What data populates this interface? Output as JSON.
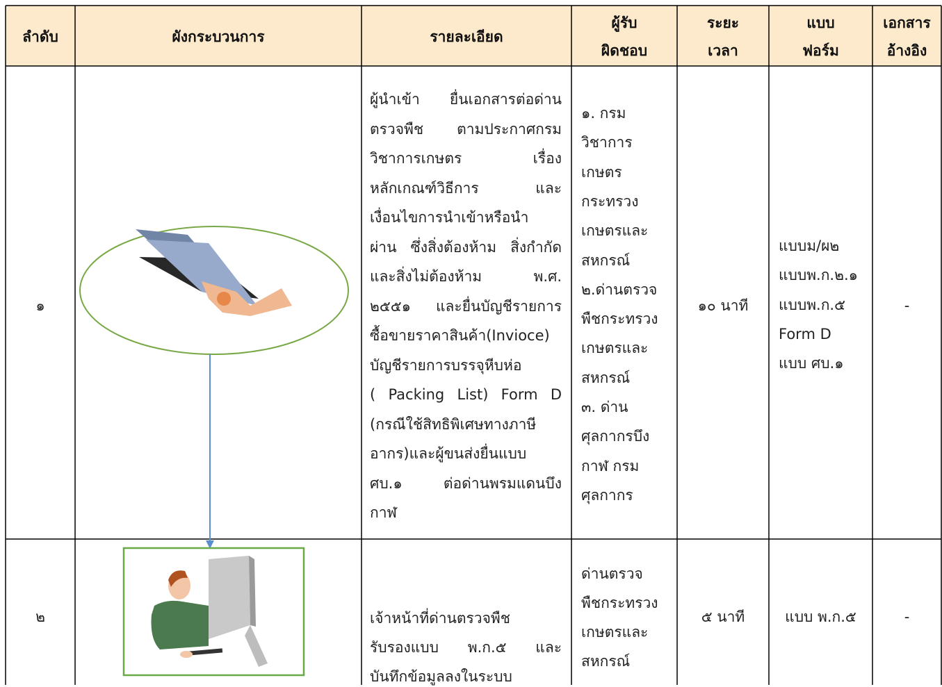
{
  "table": {
    "header": [
      [
        "ลำดับ"
      ],
      [
        "ผังกระบวนการ"
      ],
      [
        "รายละเอียด"
      ],
      [
        "ผู้รับ",
        "ผิดชอบ"
      ],
      [
        "ระยะ",
        "เวลา"
      ],
      [
        "แบบ",
        "ฟอร์ม"
      ],
      [
        "เอกสาร",
        "อ้างอิง"
      ]
    ],
    "rows": [
      {
        "number": "๑",
        "detail": [
          "ผู้นำเข้า ยื่นเอกสารต่อด่าน",
          "ตรวจพืช ตามประกาศกรม",
          "วิชาการเกษตร เรื่อง",
          "หลักเกณฑ์วิธีการ และ",
          "เงื่อนไขการนำเข้าหรือนำ",
          "ผ่าน ซึ่งสิ่งต้องห้าม สิ่งกำกัด",
          "และสิ่งไม่ต้องห้าม พ.ศ.",
          "๒๕๕๑ และยื่นบัญชีรายการ",
          "ซื้อขายราคาสินค้า(Invioce)",
          "บัญชีรายการบรรจุหีบห่อ",
          "( Packing List) Form D",
          "(กรณีใช้สิทธิพิเศษทางภาษี",
          "อากร)และผู้ขนส่งยื่นแบบ",
          "ศบ.๑ ต่อด่านพรมแดนบึง",
          "กาฬ"
        ],
        "responsible": [
          "๑. กรม",
          "วิชาการ",
          "เกษตร",
          "กระทรวง",
          "เกษตรและ",
          "สหกรณ์",
          "๒.ด่านตรวจ",
          "พืชกระทรวง",
          "เกษตรและ",
          "สหกรณ์",
          "๓. ด่าน",
          "ศุลกากรบึง",
          "กาฬ กรม",
          "ศุลกากร"
        ],
        "time": "๑๐ นาที",
        "form": [
          "แบบม/ผ๒",
          "แบบพ.ก.๒.๑",
          "แบบพ.ก.๕",
          "Form D",
          "แบบ ศบ.๑"
        ],
        "reference": "-"
      },
      {
        "number": "๒",
        "detail": [
          "เจ้าหน้าที่ด่านตรวจพืช",
          "รับรองแบบ พ.ก.๕ และ",
          "บันทึกข้อมูลลงในระบบ"
        ],
        "responsible": [
          "ด่านตรวจ",
          "พืชกระทรวง",
          "เกษตรและ",
          "สหกรณ์"
        ],
        "time": "๕ นาที",
        "form": [
          "แบบ พ.ก.๕"
        ],
        "reference": "-"
      }
    ]
  }
}
